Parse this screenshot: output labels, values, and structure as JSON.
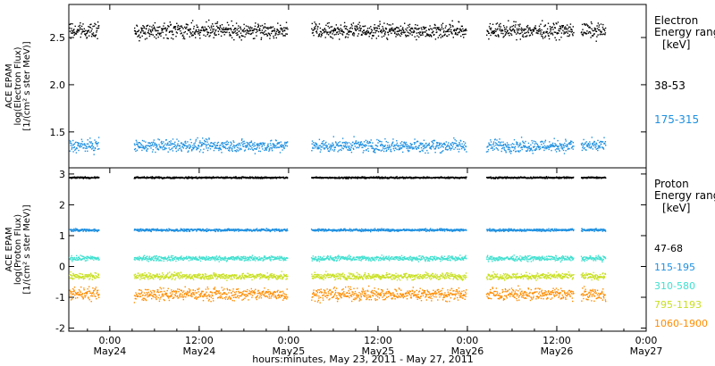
{
  "chart_data": [
    {
      "type": "scatter",
      "panel": "electron",
      "ylabel_lines": [
        "ACE EPAM",
        "log(Electron Flux)",
        "[1/(cm² s ster MeV)]"
      ],
      "ylim": [
        1.12,
        2.85
      ],
      "yticks": [
        {
          "value": 2.5,
          "label": "2.5"
        },
        {
          "value": 2.0,
          "label": "2.0"
        },
        {
          "value": 1.5,
          "label": "1.5"
        }
      ],
      "legend_title": [
        "Electron",
        "Energy ranges"
      ],
      "legend_unit": "[keV]",
      "gaps": [
        [
          -1.5,
          -0.5
        ],
        [
          -0.5,
          0.2
        ]
      ],
      "series": [
        {
          "name": "38-53",
          "color": "#000000",
          "mean": 2.58,
          "spread": 0.06
        },
        {
          "name": "175-315",
          "color": "#1e90e0",
          "mean": 1.36,
          "spread": 0.05
        }
      ]
    },
    {
      "type": "scatter",
      "panel": "proton",
      "ylabel_lines": [
        "ACE EPAM",
        "log(Proton Flux)",
        "[1/(cm² s ster MeV)]"
      ],
      "ylim": [
        -2.1,
        3.2
      ],
      "yticks": [
        {
          "value": 3,
          "label": "3"
        },
        {
          "value": 2,
          "label": "2"
        },
        {
          "value": 1,
          "label": "1"
        },
        {
          "value": 0,
          "label": "0"
        },
        {
          "value": -1,
          "label": "-1"
        },
        {
          "value": -2,
          "label": "-2"
        }
      ],
      "legend_title": [
        "Proton",
        "Energy ranges"
      ],
      "legend_unit": "[keV]",
      "series": [
        {
          "name": "47-68",
          "color": "#000000",
          "mean": 2.9,
          "spread": 0.02
        },
        {
          "name": "115-195",
          "color": "#1e90e0",
          "mean": 1.2,
          "spread": 0.03
        },
        {
          "name": "310-580",
          "color": "#40e0d0",
          "mean": 0.28,
          "spread": 0.06
        },
        {
          "name": "795-1193",
          "color": "#c8e020",
          "mean": -0.3,
          "spread": 0.08
        },
        {
          "name": "1060-1900",
          "color": "#ff8c00",
          "mean": -0.88,
          "spread": 0.15
        }
      ]
    }
  ],
  "x_axis": {
    "xlabel": "hours:minutes, May 23, 2011 - May 27, 2011",
    "xlim_hours": [
      -5.5,
      72
    ],
    "ticks": [
      {
        "hour": 0,
        "time": "0:00",
        "date": "May24"
      },
      {
        "hour": 12,
        "time": "12:00",
        "date": "May24"
      },
      {
        "hour": 24,
        "time": "0:00",
        "date": "May25"
      },
      {
        "hour": 36,
        "time": "12:00",
        "date": "May25"
      },
      {
        "hour": 48,
        "time": "0:00",
        "date": "May26"
      },
      {
        "hour": 60,
        "time": "12:00",
        "date": "May26"
      },
      {
        "hour": 72,
        "time": "0:00",
        "date": "May27"
      }
    ],
    "data_segments": [
      [
        -5.5,
        -1.5
      ],
      [
        3.2,
        23.8
      ],
      [
        27.0,
        47.8
      ],
      [
        50.5,
        62.2
      ],
      [
        63.2,
        66.5
      ]
    ]
  }
}
